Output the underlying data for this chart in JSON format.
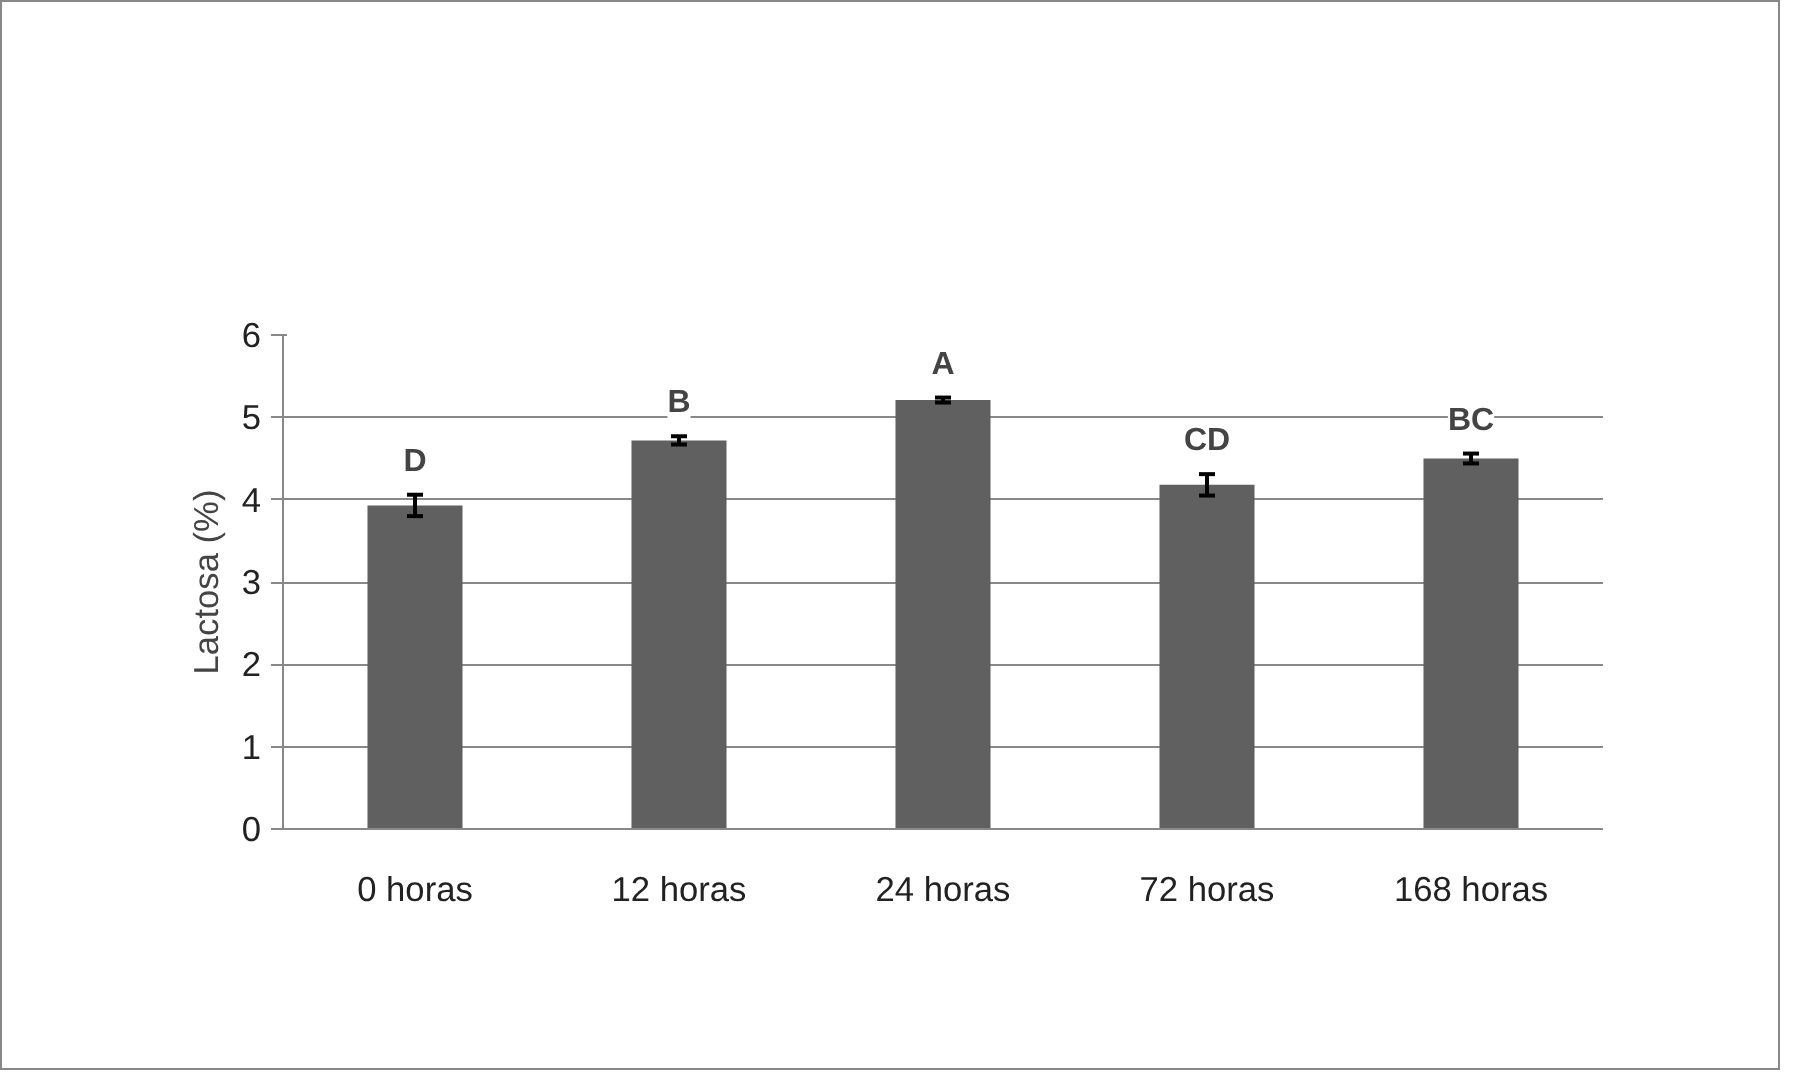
{
  "chart_data": {
    "type": "bar",
    "ylabel": "Lactosa (%)",
    "categories": [
      "0 horas",
      "12 horas",
      "24 horas",
      "72 horas",
      "168 horas"
    ],
    "values": [
      3.93,
      4.72,
      5.21,
      4.18,
      4.5
    ],
    "errors": [
      0.13,
      0.05,
      0.03,
      0.13,
      0.06
    ],
    "color": "#606060",
    "ylim": [
      0,
      6
    ],
    "yticks": [
      0,
      1,
      2,
      3,
      4,
      5,
      6
    ],
    "grid": "y",
    "annotations": [
      "D",
      "B",
      "A",
      "CD",
      "BC"
    ]
  }
}
